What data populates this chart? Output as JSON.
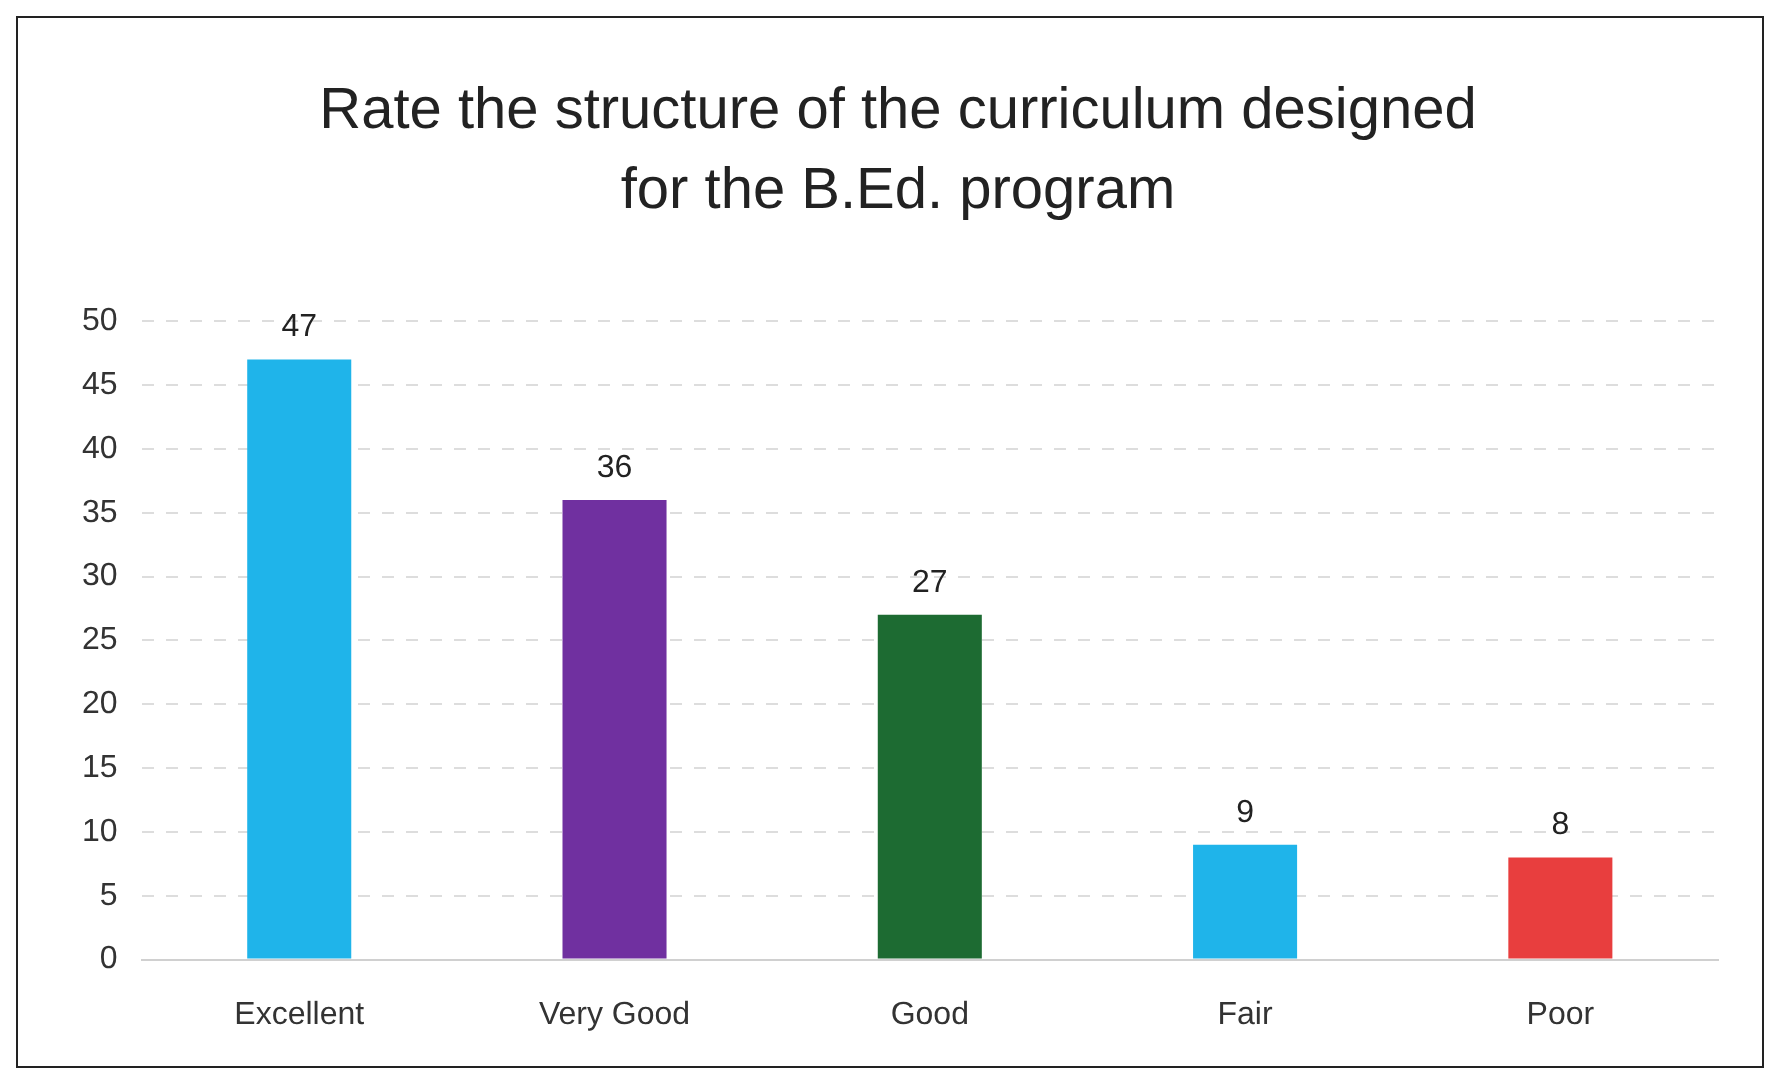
{
  "chart_data": {
    "type": "bar",
    "title": "Rate the structure of the curriculum designed for the B.Ed. program",
    "categories": [
      "Excellent",
      "Very Good",
      "Good",
      "Fair",
      "Poor"
    ],
    "values": [
      47,
      36,
      27,
      9,
      8
    ],
    "colors": [
      "#1fb4ea",
      "#7030a0",
      "#1d6b32",
      "#1fb4ea",
      "#e83e3e"
    ],
    "ylim": [
      0,
      50
    ],
    "yticks": [
      0,
      5,
      10,
      15,
      20,
      25,
      30,
      35,
      40,
      45,
      50
    ],
    "grid": "y",
    "data_labels": true,
    "legend": false
  }
}
